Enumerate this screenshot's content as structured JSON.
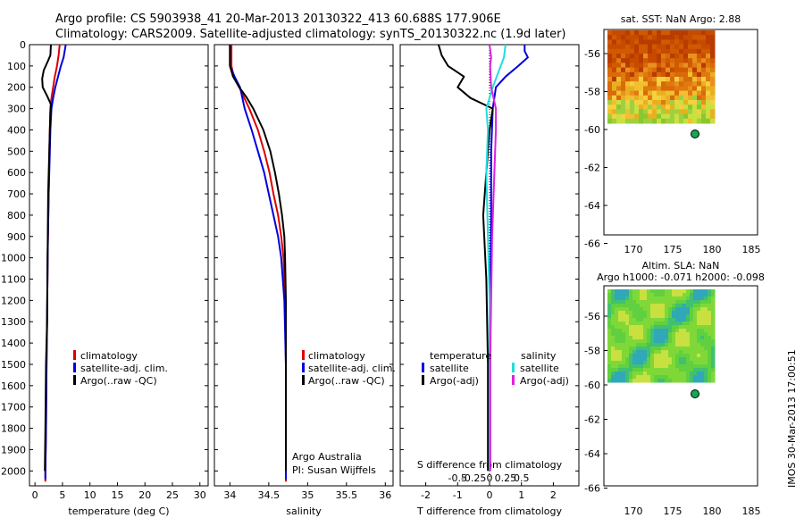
{
  "header": {
    "line1": "Argo profile: CS 5903938_41 20-Mar-2013 20130322_413 60.688S 177.906E",
    "line2": "Climatology: CARS2009. Satellite-adjusted climatology: synTS_20130322.nc (1.9d later)"
  },
  "depth_ticks": [
    "0",
    "100",
    "200",
    "300",
    "400",
    "500",
    "600",
    "700",
    "800",
    "900",
    "1000",
    "1100",
    "1200",
    "1300",
    "1400",
    "1500",
    "1600",
    "1700",
    "1800",
    "1900",
    "2000"
  ],
  "colors": {
    "climatology": "#dd0000",
    "satellite": "#0000dd",
    "argo": "#000000",
    "sat_temp_diff": "#22dddd",
    "argo_sal_diff": "#dd22dd",
    "marker": "#11aa55"
  },
  "temperature_panel": {
    "xlabel": "temperature (deg C)",
    "x_ticks": [
      "0",
      "5",
      "10",
      "15",
      "20",
      "25",
      "30"
    ],
    "legend": [
      "climatology",
      "satellite-adj. clim.",
      "Argo(..raw -QC)"
    ]
  },
  "salinity_panel": {
    "xlabel": "salinity",
    "x_ticks": [
      "34",
      "34.5",
      "35",
      "35.5",
      "36"
    ],
    "legend": [
      "climatology",
      "satellite-adj. clim.",
      "Argo(..raw -QC)"
    ],
    "credit1": "Argo Australia",
    "credit2": "PI: Susan Wijffels"
  },
  "diff_panel": {
    "xlabel": "T difference from climatology",
    "top_axis_label": "S difference from climatology",
    "x_ticks": [
      "-2",
      "-1",
      "0",
      "1",
      "2"
    ],
    "s_ticks": [
      "-0.5",
      "-0.25",
      "0",
      "0.25",
      "0.5"
    ],
    "legend_temp_title": "temperature",
    "legend_sal_title": "salinity",
    "legend_sat": "satellite",
    "legend_argo": "Argo(-adj)"
  },
  "sst_map": {
    "title": "sat. SST: NaN Argo: 2.88",
    "y_ticks": [
      "-56",
      "-58",
      "-60",
      "-62",
      "-64",
      "-66"
    ],
    "x_ticks": [
      "170",
      "175",
      "180",
      "185"
    ]
  },
  "sla_map": {
    "title1": "Altim. SLA: NaN",
    "title2": "Argo h1000: -0.071 h2000: -0.098",
    "y_ticks": [
      "-56",
      "-58",
      "-60",
      "-62",
      "-64",
      "-66"
    ],
    "x_ticks": [
      "170",
      "175",
      "180",
      "185"
    ]
  },
  "footer_stamp": "IMOS 30-Mar-2013 17:00:51",
  "chart_data": [
    {
      "type": "line",
      "title": "",
      "xlabel": "temperature (deg C)",
      "ylabel": "",
      "xlim": [
        -1,
        31.5
      ],
      "ylim": [
        2070,
        0
      ],
      "series": [
        {
          "name": "climatology",
          "color": "#dd0000",
          "y": [
            0,
            50,
            100,
            150,
            200,
            250,
            300,
            400,
            500,
            700,
            1000,
            1300,
            1500,
            1800,
            2000,
            2050
          ],
          "x": [
            4.5,
            4.3,
            4.0,
            3.6,
            3.3,
            3.0,
            2.8,
            2.7,
            2.6,
            2.5,
            2.3,
            2.2,
            2.1,
            2.0,
            1.9,
            1.9
          ]
        },
        {
          "name": "satellite-adj. clim.",
          "color": "#0000dd",
          "y": [
            0,
            30,
            60,
            100,
            150,
            200,
            250,
            300,
            400,
            500,
            700,
            1000,
            1300,
            1500,
            1800,
            2000,
            2040
          ],
          "x": [
            5.6,
            5.4,
            5.2,
            4.7,
            4.2,
            3.7,
            3.3,
            3.0,
            2.8,
            2.7,
            2.5,
            2.3,
            2.2,
            2.1,
            2.0,
            1.9,
            1.9
          ]
        },
        {
          "name": "Argo(..raw -QC)",
          "color": "#000000",
          "y": [
            0,
            50,
            80,
            120,
            160,
            200,
            240,
            280,
            320,
            400,
            500,
            700,
            1000,
            1300,
            1500,
            1800,
            2000
          ],
          "x": [
            2.9,
            2.8,
            2.3,
            1.6,
            1.3,
            1.4,
            2.2,
            2.9,
            2.8,
            2.7,
            2.6,
            2.4,
            2.3,
            2.2,
            2.0,
            1.9,
            1.8
          ]
        }
      ]
    },
    {
      "type": "line",
      "title": "",
      "xlabel": "salinity",
      "ylabel": "",
      "xlim": [
        33.8,
        36.1
      ],
      "ylim": [
        2070,
        0
      ],
      "series": [
        {
          "name": "climatology",
          "color": "#dd0000",
          "y": [
            0,
            100,
            150,
            200,
            300,
            400,
            500,
            600,
            700,
            800,
            900,
            1000,
            1200,
            1500,
            1800,
            2000,
            2050
          ],
          "x": [
            34.02,
            34.02,
            34.05,
            34.12,
            34.25,
            34.36,
            34.44,
            34.51,
            34.56,
            34.62,
            34.66,
            34.69,
            34.71,
            34.72,
            34.72,
            34.72,
            34.72
          ]
        },
        {
          "name": "satellite-adj. clim.",
          "color": "#0000dd",
          "y": [
            0,
            100,
            150,
            200,
            300,
            400,
            500,
            600,
            700,
            800,
            900,
            1000,
            1200,
            1500,
            1800,
            2000,
            2040
          ],
          "x": [
            34.0,
            34.0,
            34.06,
            34.13,
            34.19,
            34.28,
            34.36,
            34.44,
            34.5,
            34.56,
            34.62,
            34.66,
            34.7,
            34.72,
            34.72,
            34.72,
            34.72
          ]
        },
        {
          "name": "Argo(..raw -QC)",
          "color": "#000000",
          "y": [
            0,
            100,
            150,
            200,
            250,
            300,
            400,
            500,
            600,
            700,
            800,
            900,
            1000,
            1200,
            1500,
            1800,
            2000
          ],
          "x": [
            34.0,
            34.0,
            34.04,
            34.12,
            34.22,
            34.3,
            34.43,
            34.52,
            34.58,
            34.63,
            34.67,
            34.7,
            34.71,
            34.72,
            34.72,
            34.72,
            34.72
          ]
        }
      ]
    },
    {
      "type": "line",
      "title": "",
      "xlabel": "T difference from climatology",
      "ylabel": "",
      "xlim": [
        -2.8,
        2.8
      ],
      "ylim": [
        2070,
        0
      ],
      "series": [
        {
          "name": "satellite",
          "group": "temperature",
          "color": "#0000dd",
          "y": [
            0,
            30,
            60,
            100,
            150,
            200,
            300,
            500,
            800,
            1200,
            1600,
            2000
          ],
          "x": [
            1.1,
            1.1,
            1.2,
            0.9,
            0.5,
            0.2,
            0.1,
            0.05,
            0.05,
            0.02,
            0.02,
            0.02
          ]
        },
        {
          "name": "Argo(-adj)",
          "group": "temperature",
          "color": "#000000",
          "y": [
            0,
            50,
            100,
            150,
            200,
            250,
            300,
            400,
            600,
            800,
            1100,
            1500,
            2000
          ],
          "x": [
            -1.6,
            -1.5,
            -1.3,
            -0.8,
            -1.0,
            -0.6,
            0.1,
            0.0,
            -0.1,
            -0.2,
            -0.1,
            -0.05,
            -0.05
          ]
        },
        {
          "name": "satellite",
          "group": "salinity",
          "color": "#22dddd",
          "y": [
            0,
            60,
            100,
            200,
            300,
            400,
            600,
            900,
            1200,
            1500,
            2000
          ],
          "x": [
            0.5,
            0.45,
            0.35,
            0.1,
            -0.1,
            -0.05,
            -0.1,
            -0.05,
            0.0,
            0.0,
            0.0
          ]
        },
        {
          "name": "Argo(-adj)",
          "group": "salinity",
          "color": "#dd22dd",
          "y": [
            0,
            60,
            100,
            200,
            300,
            400,
            600,
            900,
            1200,
            1500,
            2000
          ],
          "x": [
            0.0,
            0.05,
            0.02,
            0.05,
            0.2,
            0.2,
            0.15,
            0.08,
            0.05,
            0.02,
            0.02
          ]
        }
      ]
    }
  ]
}
